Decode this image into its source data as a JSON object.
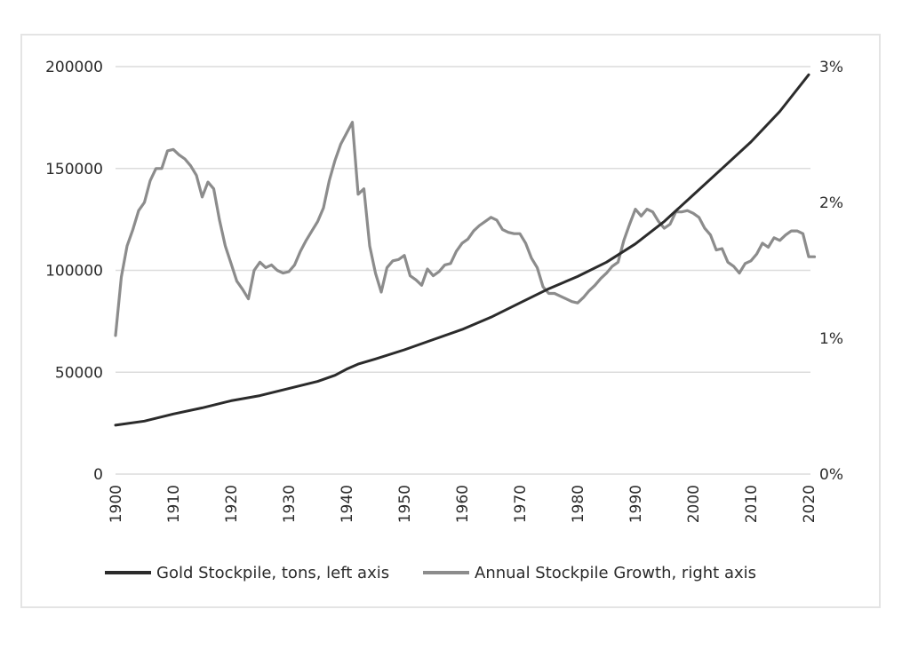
{
  "chart_data": {
    "type": "line",
    "title": "",
    "x_ticks": [
      "1900",
      "1910",
      "1920",
      "1930",
      "1940",
      "1950",
      "1960",
      "1970",
      "1980",
      "1990",
      "2000",
      "2010",
      "2020"
    ],
    "xlim": [
      1900,
      2020
    ],
    "left_axis": {
      "ticks": [
        "0",
        "50000",
        "100000",
        "150000",
        "200000"
      ],
      "ylim": [
        0,
        200000
      ]
    },
    "right_axis": {
      "ticks": [
        "0%",
        "1%",
        "2%",
        "3%"
      ],
      "ylim": [
        0,
        3
      ]
    },
    "grid": true,
    "legend_position": "bottom",
    "series": [
      {
        "name": "Gold Stockpile, tons, left axis",
        "axis": "left",
        "color": "#2b2b2b",
        "points": [
          [
            1900,
            24000
          ],
          [
            1905,
            26000
          ],
          [
            1910,
            29500
          ],
          [
            1915,
            32500
          ],
          [
            1920,
            36000
          ],
          [
            1925,
            38500
          ],
          [
            1930,
            42000
          ],
          [
            1935,
            45500
          ],
          [
            1938,
            48500
          ],
          [
            1940,
            51500
          ],
          [
            1942,
            54000
          ],
          [
            1945,
            56500
          ],
          [
            1950,
            61000
          ],
          [
            1955,
            66000
          ],
          [
            1960,
            71000
          ],
          [
            1965,
            77000
          ],
          [
            1970,
            84000
          ],
          [
            1975,
            91000
          ],
          [
            1980,
            97000
          ],
          [
            1985,
            104000
          ],
          [
            1990,
            113000
          ],
          [
            1995,
            124000
          ],
          [
            2000,
            137000
          ],
          [
            2005,
            150000
          ],
          [
            2010,
            163000
          ],
          [
            2015,
            178000
          ],
          [
            2020,
            196000
          ]
        ]
      },
      {
        "name": "Annual Stockpile Growth, right axis",
        "axis": "right",
        "color": "#8c8c8c",
        "points": [
          [
            1900,
            1.02
          ],
          [
            1901,
            1.45
          ],
          [
            1902,
            1.68
          ],
          [
            1903,
            1.8
          ],
          [
            1904,
            1.94
          ],
          [
            1905,
            2.0
          ],
          [
            1906,
            2.16
          ],
          [
            1907,
            2.25
          ],
          [
            1908,
            2.25
          ],
          [
            1909,
            2.38
          ],
          [
            1910,
            2.39
          ],
          [
            1911,
            2.35
          ],
          [
            1912,
            2.32
          ],
          [
            1913,
            2.27
          ],
          [
            1914,
            2.2
          ],
          [
            1915,
            2.04
          ],
          [
            1916,
            2.15
          ],
          [
            1917,
            2.1
          ],
          [
            1918,
            1.87
          ],
          [
            1919,
            1.68
          ],
          [
            1920,
            1.55
          ],
          [
            1921,
            1.42
          ],
          [
            1922,
            1.36
          ],
          [
            1923,
            1.29
          ],
          [
            1924,
            1.5
          ],
          [
            1925,
            1.56
          ],
          [
            1926,
            1.52
          ],
          [
            1927,
            1.54
          ],
          [
            1928,
            1.5
          ],
          [
            1929,
            1.48
          ],
          [
            1930,
            1.49
          ],
          [
            1931,
            1.54
          ],
          [
            1932,
            1.64
          ],
          [
            1933,
            1.72
          ],
          [
            1934,
            1.79
          ],
          [
            1935,
            1.86
          ],
          [
            1936,
            1.96
          ],
          [
            1937,
            2.16
          ],
          [
            1938,
            2.31
          ],
          [
            1939,
            2.43
          ],
          [
            1940,
            2.51
          ],
          [
            1941,
            2.59
          ],
          [
            1942,
            2.06
          ],
          [
            1943,
            2.1
          ],
          [
            1944,
            1.68
          ],
          [
            1945,
            1.48
          ],
          [
            1946,
            1.34
          ],
          [
            1947,
            1.52
          ],
          [
            1948,
            1.57
          ],
          [
            1949,
            1.58
          ],
          [
            1950,
            1.61
          ],
          [
            1951,
            1.46
          ],
          [
            1952,
            1.43
          ],
          [
            1953,
            1.39
          ],
          [
            1954,
            1.51
          ],
          [
            1955,
            1.46
          ],
          [
            1956,
            1.49
          ],
          [
            1957,
            1.54
          ],
          [
            1958,
            1.55
          ],
          [
            1959,
            1.64
          ],
          [
            1960,
            1.7
          ],
          [
            1961,
            1.73
          ],
          [
            1962,
            1.79
          ],
          [
            1963,
            1.83
          ],
          [
            1964,
            1.86
          ],
          [
            1965,
            1.89
          ],
          [
            1966,
            1.87
          ],
          [
            1967,
            1.8
          ],
          [
            1968,
            1.78
          ],
          [
            1969,
            1.77
          ],
          [
            1970,
            1.77
          ],
          [
            1971,
            1.7
          ],
          [
            1972,
            1.59
          ],
          [
            1973,
            1.52
          ],
          [
            1974,
            1.38
          ],
          [
            1975,
            1.33
          ],
          [
            1976,
            1.33
          ],
          [
            1977,
            1.31
          ],
          [
            1978,
            1.29
          ],
          [
            1979,
            1.27
          ],
          [
            1980,
            1.26
          ],
          [
            1981,
            1.3
          ],
          [
            1982,
            1.35
          ],
          [
            1983,
            1.39
          ],
          [
            1984,
            1.44
          ],
          [
            1985,
            1.48
          ],
          [
            1986,
            1.53
          ],
          [
            1987,
            1.56
          ],
          [
            1988,
            1.72
          ],
          [
            1989,
            1.84
          ],
          [
            1990,
            1.95
          ],
          [
            1991,
            1.9
          ],
          [
            1992,
            1.95
          ],
          [
            1993,
            1.93
          ],
          [
            1994,
            1.86
          ],
          [
            1995,
            1.81
          ],
          [
            1996,
            1.84
          ],
          [
            1997,
            1.93
          ],
          [
            1998,
            1.93
          ],
          [
            1999,
            1.94
          ],
          [
            2000,
            1.92
          ],
          [
            2001,
            1.89
          ],
          [
            2002,
            1.81
          ],
          [
            2003,
            1.76
          ],
          [
            2004,
            1.65
          ],
          [
            2005,
            1.66
          ],
          [
            2006,
            1.56
          ],
          [
            2007,
            1.53
          ],
          [
            2008,
            1.48
          ],
          [
            2009,
            1.55
          ],
          [
            2010,
            1.57
          ],
          [
            2011,
            1.62
          ],
          [
            2012,
            1.7
          ],
          [
            2013,
            1.67
          ],
          [
            2014,
            1.74
          ],
          [
            2015,
            1.72
          ],
          [
            2016,
            1.76
          ],
          [
            2017,
            1.79
          ],
          [
            2018,
            1.79
          ],
          [
            2019,
            1.77
          ],
          [
            2020,
            1.6
          ],
          [
            2021,
            1.6
          ]
        ]
      }
    ]
  }
}
